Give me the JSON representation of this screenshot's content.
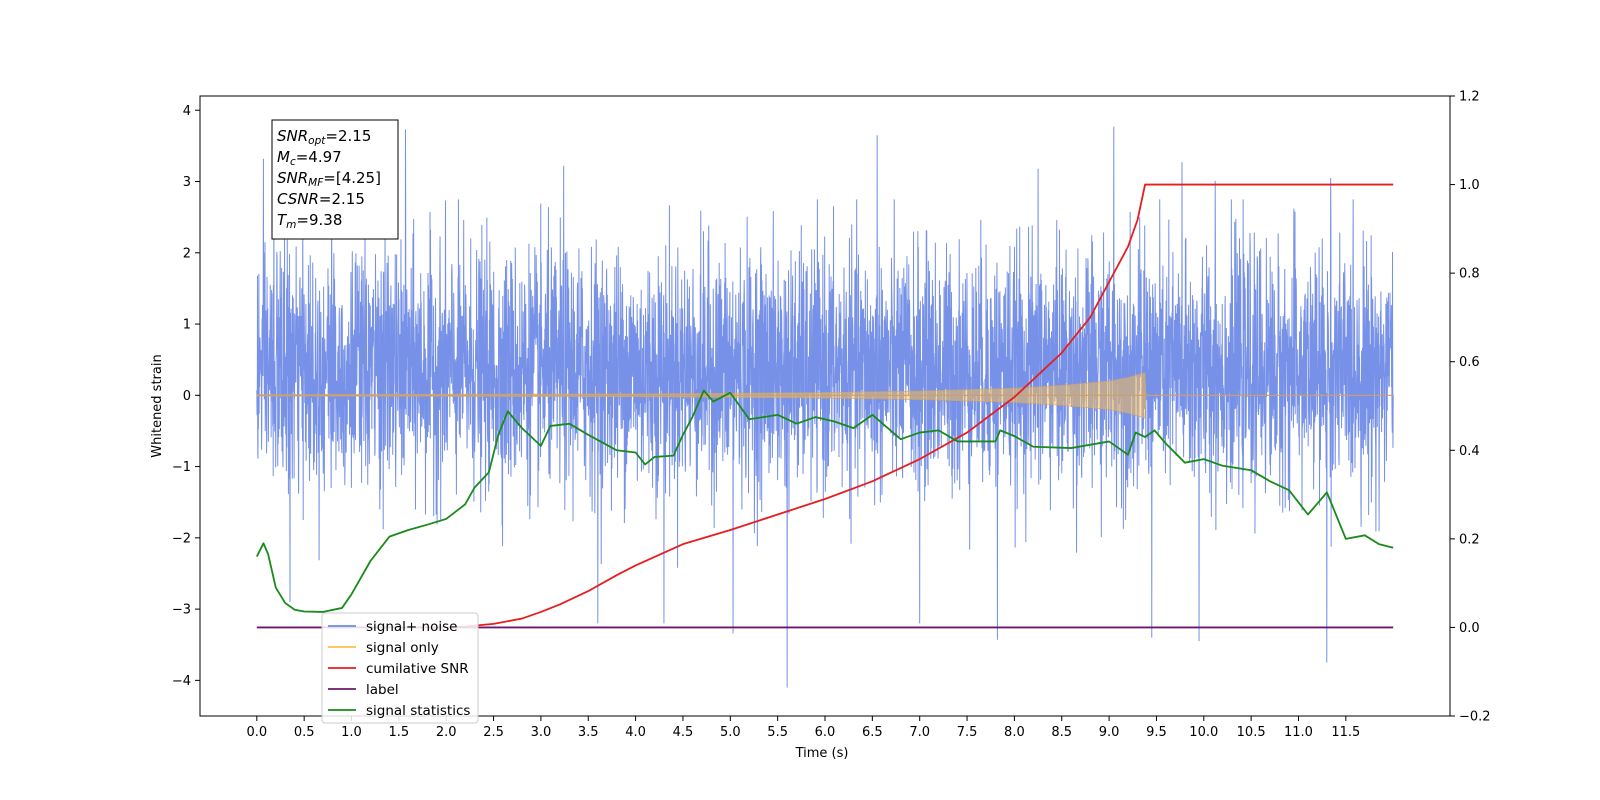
{
  "chart_data": {
    "type": "line",
    "title": "",
    "xlabel": "Time (s)",
    "ylabel": "Whitened strain",
    "y2label": "",
    "xlim": [
      -0.6,
      12.6
    ],
    "ylim": [
      -4.5,
      4.2
    ],
    "y2lim": [
      -0.2,
      1.2
    ],
    "x_ticks": [
      0.0,
      0.5,
      1.0,
      1.5,
      2.0,
      2.5,
      3.0,
      3.5,
      4.0,
      4.5,
      5.0,
      5.5,
      6.0,
      6.5,
      7.0,
      7.5,
      8.0,
      8.5,
      9.0,
      9.5,
      10.0,
      10.5,
      11.0,
      11.5
    ],
    "x_tick_labels": [
      "0.0",
      "0.5",
      "1.0",
      "1.5",
      "2.0",
      "2.5",
      "3.0",
      "3.5",
      "4.0",
      "4.5",
      "5.0",
      "5.5",
      "6.0",
      "6.5",
      "7.0",
      "7.5",
      "8.0",
      "8.5",
      "9.0",
      "9.5",
      "10.0",
      "10.5",
      "11.0",
      "11.5"
    ],
    "y_ticks": [
      -4,
      -3,
      -2,
      -1,
      0,
      1,
      2,
      3,
      4
    ],
    "y_tick_labels": [
      "−4",
      "−3",
      "−2",
      "−1",
      "0",
      "1",
      "2",
      "3",
      "4"
    ],
    "y2_ticks": [
      -0.2,
      0.0,
      0.2,
      0.4,
      0.6,
      0.8,
      1.0,
      1.2
    ],
    "y2_tick_labels": [
      "−0.2",
      "0.0",
      "0.2",
      "0.4",
      "0.6",
      "0.8",
      "1.0",
      "1.2"
    ],
    "legend_position": "lower-left",
    "grid": false,
    "series": [
      {
        "name": "signal+ noise",
        "axis": "left",
        "color": "#6f8be6",
        "style": "noise",
        "x_range": [
          0.0,
          12.0
        ],
        "typical_range": [
          -1.6,
          2.3
        ],
        "peaks": [
          [
            0.07,
            3.32
          ],
          [
            0.18,
            3.01
          ],
          [
            0.79,
            3.15
          ],
          [
            1.57,
            3.73
          ],
          [
            3.24,
            3.22
          ],
          [
            6.55,
            3.65
          ],
          [
            8.25,
            3.18
          ],
          [
            9.05,
            3.77
          ],
          [
            9.77,
            3.27
          ],
          [
            10.12,
            3.01
          ],
          [
            11.34,
            3.05
          ]
        ],
        "troughs": [
          [
            0.35,
            -2.9
          ],
          [
            3.6,
            -3.2
          ],
          [
            4.3,
            -3.2
          ],
          [
            5.03,
            -3.34
          ],
          [
            5.6,
            -4.1
          ],
          [
            7.0,
            -3.2
          ],
          [
            7.82,
            -3.43
          ],
          [
            9.45,
            -3.4
          ],
          [
            9.95,
            -3.45
          ],
          [
            11.3,
            -3.75
          ]
        ]
      },
      {
        "name": "signal only",
        "axis": "left",
        "color": "#ffc04c",
        "style": "chirp",
        "x_range": [
          0.0,
          12.0
        ],
        "envelope": [
          [
            0.0,
            0.01
          ],
          [
            2.0,
            0.015
          ],
          [
            4.0,
            0.02
          ],
          [
            6.0,
            0.04
          ],
          [
            7.0,
            0.06
          ],
          [
            8.0,
            0.1
          ],
          [
            8.5,
            0.14
          ],
          [
            9.0,
            0.2
          ],
          [
            9.2,
            0.25
          ],
          [
            9.38,
            0.32
          ],
          [
            9.39,
            0.0
          ],
          [
            12.0,
            0.0
          ]
        ]
      },
      {
        "name": "cumilative SNR",
        "axis": "right",
        "color": "#e61e1e",
        "style": "line",
        "points": [
          [
            2.0,
            0.0
          ],
          [
            2.2,
            0.002
          ],
          [
            2.5,
            0.008
          ],
          [
            2.8,
            0.02
          ],
          [
            3.0,
            0.035
          ],
          [
            3.2,
            0.052
          ],
          [
            3.5,
            0.082
          ],
          [
            3.8,
            0.118
          ],
          [
            4.0,
            0.14
          ],
          [
            4.5,
            0.188
          ],
          [
            5.0,
            0.22
          ],
          [
            5.5,
            0.255
          ],
          [
            6.0,
            0.29
          ],
          [
            6.5,
            0.33
          ],
          [
            7.0,
            0.38
          ],
          [
            7.5,
            0.44
          ],
          [
            8.0,
            0.52
          ],
          [
            8.5,
            0.62
          ],
          [
            8.8,
            0.7
          ],
          [
            9.0,
            0.78
          ],
          [
            9.1,
            0.82
          ],
          [
            9.2,
            0.86
          ],
          [
            9.3,
            0.92
          ],
          [
            9.38,
            1.0
          ],
          [
            12.0,
            1.0
          ]
        ]
      },
      {
        "name": "label",
        "axis": "right",
        "color": "#6a1a6a",
        "style": "line",
        "points": [
          [
            0.0,
            0.0
          ],
          [
            12.0,
            0.0
          ]
        ]
      },
      {
        "name": "signal statistics",
        "axis": "right",
        "color": "#1a8a1a",
        "style": "line",
        "points": [
          [
            0.0,
            0.16
          ],
          [
            0.07,
            0.19
          ],
          [
            0.12,
            0.165
          ],
          [
            0.2,
            0.09
          ],
          [
            0.3,
            0.055
          ],
          [
            0.4,
            0.04
          ],
          [
            0.5,
            0.036
          ],
          [
            0.7,
            0.035
          ],
          [
            0.9,
            0.044
          ],
          [
            1.0,
            0.075
          ],
          [
            1.2,
            0.15
          ],
          [
            1.4,
            0.205
          ],
          [
            1.6,
            0.22
          ],
          [
            1.8,
            0.232
          ],
          [
            2.0,
            0.245
          ],
          [
            2.2,
            0.278
          ],
          [
            2.3,
            0.316
          ],
          [
            2.45,
            0.35
          ],
          [
            2.55,
            0.435
          ],
          [
            2.65,
            0.488
          ],
          [
            2.8,
            0.45
          ],
          [
            3.0,
            0.41
          ],
          [
            3.1,
            0.455
          ],
          [
            3.3,
            0.46
          ],
          [
            3.5,
            0.435
          ],
          [
            3.8,
            0.4
          ],
          [
            4.0,
            0.395
          ],
          [
            4.1,
            0.368
          ],
          [
            4.2,
            0.385
          ],
          [
            4.4,
            0.388
          ],
          [
            4.5,
            0.435
          ],
          [
            4.6,
            0.475
          ],
          [
            4.72,
            0.535
          ],
          [
            4.82,
            0.51
          ],
          [
            5.0,
            0.53
          ],
          [
            5.2,
            0.47
          ],
          [
            5.5,
            0.48
          ],
          [
            5.7,
            0.46
          ],
          [
            5.9,
            0.475
          ],
          [
            6.1,
            0.465
          ],
          [
            6.3,
            0.45
          ],
          [
            6.5,
            0.48
          ],
          [
            6.8,
            0.425
          ],
          [
            7.0,
            0.44
          ],
          [
            7.2,
            0.445
          ],
          [
            7.4,
            0.42
          ],
          [
            7.8,
            0.42
          ],
          [
            7.85,
            0.445
          ],
          [
            8.0,
            0.432
          ],
          [
            8.2,
            0.408
          ],
          [
            8.6,
            0.405
          ],
          [
            9.0,
            0.42
          ],
          [
            9.2,
            0.39
          ],
          [
            9.28,
            0.44
          ],
          [
            9.38,
            0.43
          ],
          [
            9.48,
            0.445
          ],
          [
            9.6,
            0.415
          ],
          [
            9.8,
            0.372
          ],
          [
            10.0,
            0.38
          ],
          [
            10.2,
            0.365
          ],
          [
            10.5,
            0.355
          ],
          [
            10.7,
            0.33
          ],
          [
            10.9,
            0.31
          ],
          [
            11.1,
            0.255
          ],
          [
            11.2,
            0.28
          ],
          [
            11.3,
            0.305
          ],
          [
            11.5,
            0.2
          ],
          [
            11.7,
            0.208
          ],
          [
            11.85,
            0.188
          ],
          [
            12.0,
            0.18
          ]
        ]
      }
    ],
    "legend": [
      {
        "label": "signal+ noise",
        "color": "#6f8be6"
      },
      {
        "label": "signal only",
        "color": "#ffc04c"
      },
      {
        "label": "cumilative SNR",
        "color": "#e61e1e"
      },
      {
        "label": "label",
        "color": "#6a1a6a"
      },
      {
        "label": "signal statistics",
        "color": "#1a8a1a"
      }
    ],
    "annotation_box": {
      "position": "top-left",
      "lines": [
        {
          "sym": "SNR",
          "sub": "opt",
          "val": "=2.15"
        },
        {
          "sym": "M",
          "sub": "c",
          "val": "=4.97"
        },
        {
          "sym": "SNR",
          "sub": "MF",
          "val": "=[4.25]"
        },
        {
          "sym": "CSNR",
          "sub": "",
          "val": "=2.15"
        },
        {
          "sym": "T",
          "sub": "m",
          "val": "=9.38"
        }
      ]
    }
  }
}
